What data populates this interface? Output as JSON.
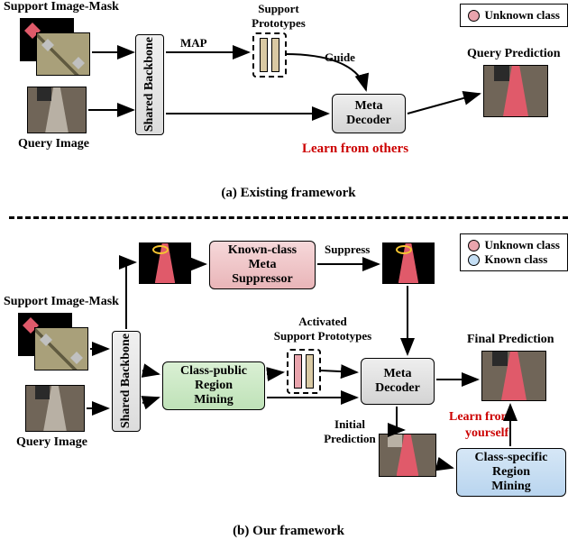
{
  "legend_a": {
    "unknown": "Unknown class"
  },
  "legend_b": {
    "unknown": "Unknown class",
    "known": "Known class"
  },
  "panel_a": {
    "caption": "(a) Existing framework",
    "support_label": "Support Image-Mask",
    "query_label": "Query Image",
    "backbone": "Shared Backbone",
    "map": "MAP",
    "proto_label": "Support\nPrototypes",
    "guide": "Guide",
    "decoder": "Meta\nDecoder",
    "learn": "Learn from others",
    "qpred": "Query Prediction"
  },
  "panel_b": {
    "caption": "(b) Our framework",
    "support_label": "Support Image-Mask",
    "query_label": "Query Image",
    "backbone": "Shared Backbone",
    "kms": "Known-class\nMeta\nSuppressor",
    "suppress": "Suppress",
    "cprm": "Class-public\nRegion\nMining",
    "proto_label": "Activated\nSupport Prototypes",
    "decoder": "Meta\nDecoder",
    "initial": "Initial\nPrediction",
    "csrm": "Class-specific\nRegion\nMining",
    "learn1": "Learn from",
    "learn2": "yourself",
    "final": "Final Prediction"
  },
  "colors": {
    "pink_fill": "#e9a4ad",
    "blue_fill": "#c4def4",
    "tan_fill": "#d9c9a3",
    "red_text": "#c00",
    "yellow": "#f6c531"
  }
}
